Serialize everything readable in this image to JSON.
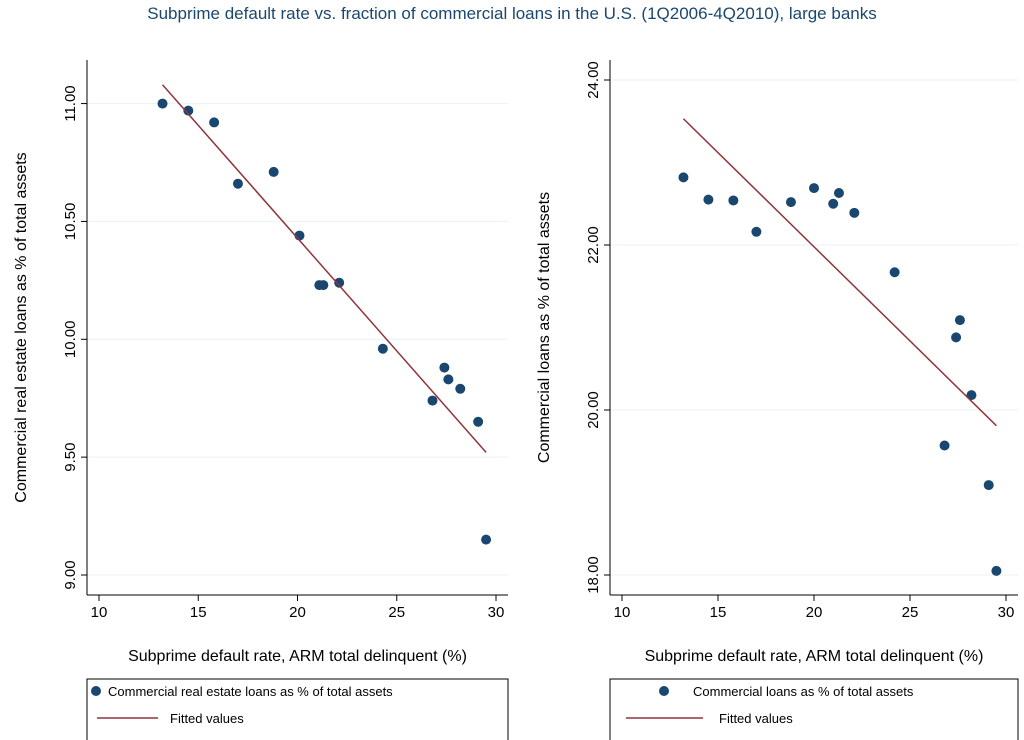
{
  "title": "Subprime default rate vs. fraction of commercial loans in the U.S. (1Q2006-4Q2010), large banks",
  "colors": {
    "marker": "#1a476f",
    "fit": "#90353b",
    "grid": "#eaf2f3"
  },
  "chart_data": [
    {
      "type": "scatter",
      "xlabel": "Subprime default rate, ARM total delinquent (%)",
      "ylabel": "Commercial real estate loans as % of total assets",
      "xlim": [
        10,
        30
      ],
      "ylim": [
        9.0,
        11.1
      ],
      "xticks": [
        10,
        15,
        20,
        25,
        30
      ],
      "xtick_labels": [
        "10",
        "15",
        "20",
        "25",
        "30"
      ],
      "yticks": [
        9.0,
        9.5,
        10.0,
        10.5,
        11.0
      ],
      "ytick_labels": [
        "9.00",
        "9.50",
        "10.00",
        "10.50",
        "11.00"
      ],
      "grid": true,
      "legend_position": "bottom",
      "series": [
        {
          "name": "Commercial real estate loans as % of total assets",
          "kind": "scatter",
          "color": "#1a476f",
          "x": [
            13.2,
            14.5,
            15.8,
            17.0,
            18.8,
            20.1,
            21.1,
            21.3,
            22.1,
            24.3,
            26.8,
            27.4,
            27.6,
            28.2,
            29.1,
            29.5
          ],
          "y": [
            11.0,
            10.97,
            10.92,
            10.66,
            10.71,
            10.44,
            10.23,
            10.23,
            10.24,
            9.96,
            9.74,
            9.88,
            9.83,
            9.79,
            9.65,
            9.15
          ]
        },
        {
          "name": "Fitted values",
          "kind": "line",
          "color": "#90353b",
          "x": [
            13.2,
            29.5
          ],
          "y": [
            11.08,
            9.52
          ]
        }
      ]
    },
    {
      "type": "scatter",
      "xlabel": "Subprime default rate, ARM total delinquent (%)",
      "ylabel": "Commercial loans as % of total assets",
      "xlim": [
        10,
        30
      ],
      "ylim": [
        18.0,
        24.0
      ],
      "xticks": [
        10,
        15,
        20,
        25,
        30
      ],
      "xtick_labels": [
        "10",
        "15",
        "20",
        "25",
        "30"
      ],
      "yticks": [
        18,
        20,
        22,
        24
      ],
      "ytick_labels": [
        "18.00",
        "20.00",
        "22.00",
        "24.00"
      ],
      "grid": true,
      "legend_position": "bottom",
      "series": [
        {
          "name": "Commercial loans as % of total assets",
          "kind": "scatter",
          "color": "#1a476f",
          "x": [
            13.2,
            14.5,
            15.8,
            17.0,
            18.8,
            20.0,
            21.0,
            21.3,
            22.1,
            24.2,
            26.8,
            27.4,
            27.6,
            28.2,
            29.1,
            29.5
          ],
          "y": [
            22.82,
            22.55,
            22.54,
            22.16,
            22.52,
            22.69,
            22.5,
            22.63,
            22.39,
            21.67,
            19.57,
            20.88,
            21.09,
            20.18,
            19.09,
            18.05
          ]
        },
        {
          "name": "Fitted values",
          "kind": "line",
          "color": "#90353b",
          "x": [
            13.2,
            29.5
          ],
          "y": [
            23.53,
            19.81
          ]
        }
      ]
    }
  ]
}
